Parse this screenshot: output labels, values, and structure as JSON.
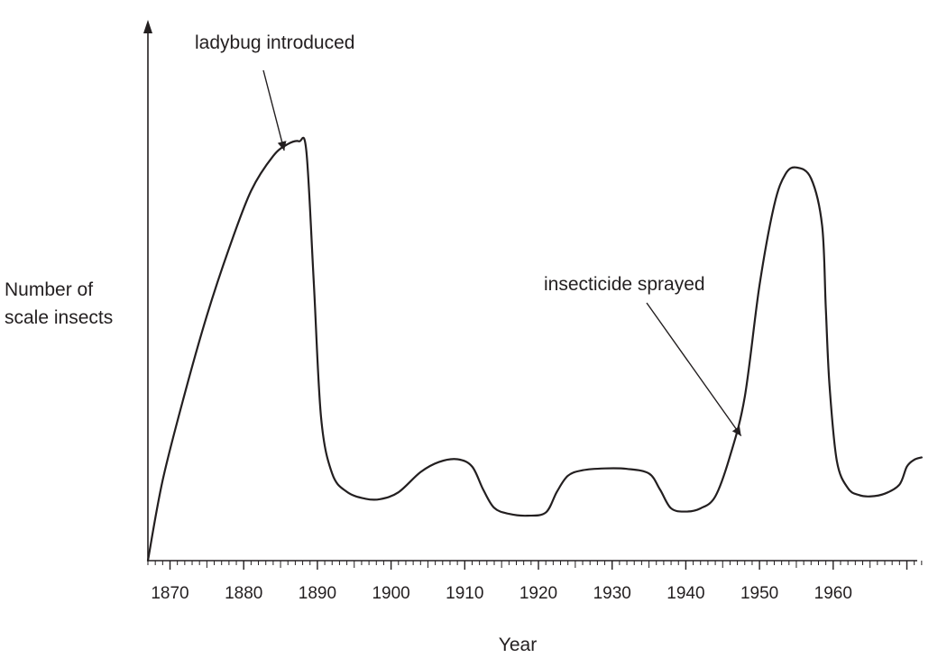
{
  "chart_data": {
    "type": "line",
    "xlabel": "Year",
    "ylabel_lines": [
      "Number of",
      "scale insects"
    ],
    "x_ticks": [
      "1870",
      "1880",
      "1890",
      "1900",
      "1910",
      "1920",
      "1930",
      "1940",
      "1950",
      "1960"
    ],
    "xlim": [
      1867,
      1972
    ],
    "y_tick_labels": false,
    "grid": false,
    "series": [
      {
        "x": [
          1867,
          1869,
          1872,
          1875,
          1878,
          1881,
          1884,
          1886,
          1887.5,
          1888.5,
          1889.5,
          1890.5,
          1892,
          1894,
          1896.5,
          1898.5,
          1901,
          1904,
          1906.5,
          1909,
          1911,
          1912.5,
          1914,
          1916,
          1918.5,
          1921,
          1922.5,
          1924,
          1926,
          1929,
          1932,
          1935,
          1936.5,
          1938,
          1940,
          1942,
          1944,
          1946,
          1948,
          1950,
          1952,
          1953.5,
          1955,
          1957,
          1958.5,
          1959,
          1959.5,
          1960.5,
          1962,
          1963.5,
          1965,
          1967,
          1969,
          1970,
          1971,
          1972
        ],
        "y": [
          0.0,
          17.5,
          36.4,
          53.4,
          68.0,
          80.6,
          88.2,
          90.8,
          91.4,
          89.3,
          61.0,
          31.2,
          19.0,
          15.0,
          13.5,
          13.4,
          14.9,
          19.3,
          21.5,
          22.1,
          20.5,
          15.5,
          11.5,
          10.2,
          9.8,
          10.5,
          15.0,
          18.5,
          19.7,
          20.1,
          20.0,
          19.0,
          15.5,
          11.4,
          10.7,
          11.4,
          14.0,
          22.8,
          35.7,
          60.0,
          77.5,
          84.2,
          85.7,
          83.3,
          73.0,
          55.0,
          38.2,
          21.7,
          15.8,
          14.3,
          14.0,
          14.6,
          16.6,
          20.5,
          22.0,
          22.5
        ]
      }
    ],
    "annotations": [
      {
        "text": "ladybug introduced",
        "at_x": 1885.5,
        "at_y": 88.6
      },
      {
        "text": "insecticide sprayed",
        "at_x": 1947.5,
        "at_y": 26.4
      }
    ]
  }
}
